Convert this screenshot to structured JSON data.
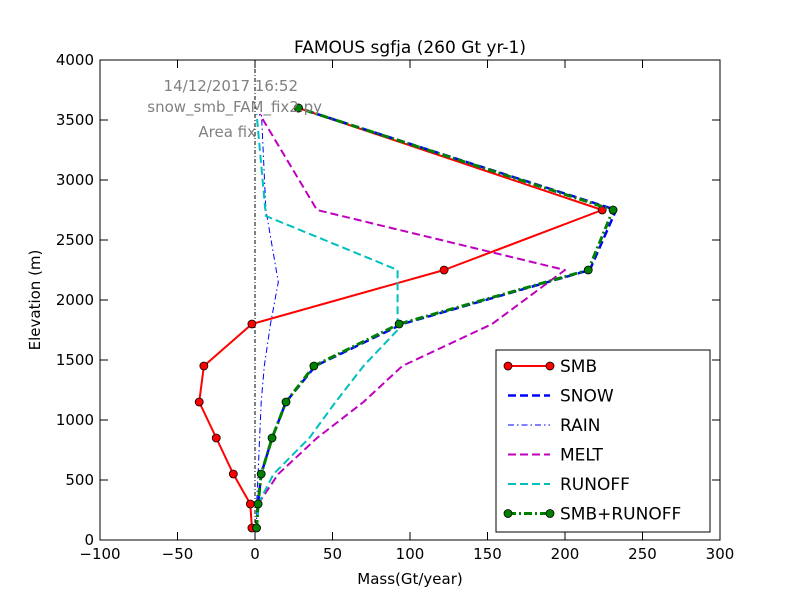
{
  "chart_data": {
    "type": "line",
    "title": "FAMOUS sgfja (260 Gt yr-1)",
    "xlabel": "Mass(Gt/year)",
    "ylabel": "Elevation (m)",
    "xlim": [
      -100,
      300
    ],
    "ylim": [
      0,
      4000
    ],
    "xticks": [
      -100,
      -50,
      0,
      50,
      100,
      150,
      200,
      250,
      300
    ],
    "yticks": [
      0,
      500,
      1000,
      1500,
      2000,
      2500,
      3000,
      3500,
      4000
    ],
    "xtick_labels": [
      "−100",
      "−50",
      "0",
      "50",
      "100",
      "150",
      "200",
      "250",
      "300"
    ],
    "ytick_labels": [
      "0",
      "500",
      "1000",
      "1500",
      "2000",
      "2500",
      "3000",
      "3500",
      "4000"
    ],
    "grid": false,
    "legend_position": "bottom-right",
    "annotations": [
      "14/12/2017 16:52",
      "snow_smb_FAM_fix2.py",
      "Area fix"
    ],
    "zero_line": {
      "x": 0,
      "style": "dash-dot",
      "color": "#000000"
    },
    "series": [
      {
        "name": "SMB",
        "color": "#ff0000",
        "style": "solid",
        "marker": "circle",
        "x": [
          -2,
          -3,
          -14,
          -25,
          -36,
          -33,
          -2,
          122,
          224,
          28
        ],
        "y": [
          100,
          300,
          550,
          850,
          1150,
          1450,
          1800,
          2250,
          2750,
          3600
        ]
      },
      {
        "name": "SNOW",
        "color": "#0000ff",
        "style": "dashed",
        "marker": "none",
        "x": [
          1,
          2,
          4,
          11,
          20,
          39,
          95,
          216,
          233,
          28
        ],
        "y": [
          100,
          300,
          550,
          850,
          1150,
          1450,
          1800,
          2250,
          2750,
          3600
        ]
      },
      {
        "name": "RAIN",
        "color": "#0000ff",
        "style": "dash-dot",
        "marker": "none",
        "x": [
          1,
          1,
          2,
          3,
          4,
          6,
          10,
          15,
          7,
          4
        ],
        "y": [
          100,
          300,
          550,
          850,
          1150,
          1450,
          1800,
          2150,
          2750,
          3600
        ]
      },
      {
        "name": "MELT",
        "color": "#bf00bf",
        "style": "dashed",
        "marker": "none",
        "x": [
          1,
          2,
          15,
          40,
          70,
          95,
          153,
          200,
          40,
          3
        ],
        "y": [
          100,
          300,
          550,
          850,
          1150,
          1450,
          1800,
          2250,
          2750,
          3550
        ]
      },
      {
        "name": "RUNOFF",
        "color": "#00bfbf",
        "style": "dashed",
        "marker": "none",
        "x": [
          1,
          2,
          12,
          35,
          52,
          70,
          92,
          92,
          7,
          1
        ],
        "y": [
          100,
          300,
          550,
          850,
          1150,
          1450,
          1750,
          2250,
          2700,
          3550
        ]
      },
      {
        "name": "SMB+RUNOFF",
        "color": "#008000",
        "style": "dash-dot",
        "marker": "circle",
        "x": [
          1,
          2,
          4,
          11,
          20,
          38,
          93,
          215,
          231,
          28
        ],
        "y": [
          100,
          300,
          550,
          850,
          1150,
          1450,
          1800,
          2250,
          2750,
          3600
        ]
      }
    ]
  }
}
